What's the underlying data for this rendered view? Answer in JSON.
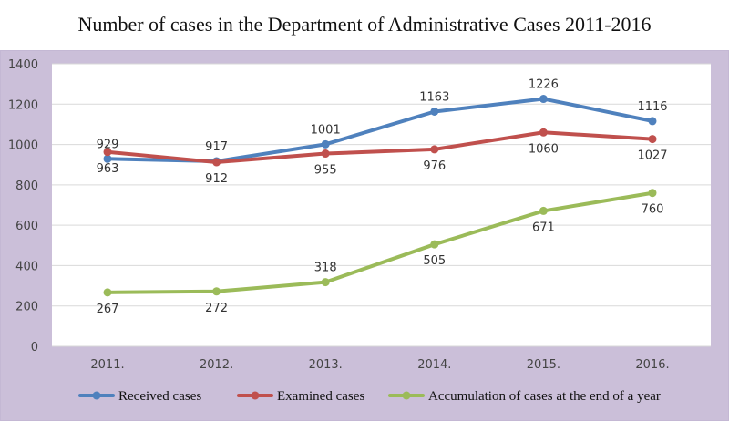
{
  "title": "Number of cases in the Department of Administrative Cases 2011-2016",
  "chart_data": {
    "type": "line",
    "title": "Number of cases in the Department of Administrative Cases 2011-2016",
    "categories": [
      "2011.",
      "2012.",
      "2013.",
      "2014.",
      "2015.",
      "2016."
    ],
    "ylim": [
      0,
      1400
    ],
    "yticks": [
      0,
      200,
      400,
      600,
      800,
      1000,
      1200,
      1400
    ],
    "grid": true,
    "legend_position": "bottom",
    "series": [
      {
        "name": "Received cases",
        "color": "#4f81bd",
        "values": [
          929,
          917,
          1001,
          1163,
          1226,
          1116
        ],
        "label_pos": [
          "above",
          "above",
          "above",
          "above",
          "above",
          "above"
        ]
      },
      {
        "name": "Examined cases",
        "color": "#c0504d",
        "values": [
          963,
          912,
          955,
          976,
          1060,
          1027
        ],
        "label_pos": [
          "below",
          "below",
          "below",
          "below",
          "below",
          "below"
        ]
      },
      {
        "name": "Accumulation of cases at the end of a year",
        "color": "#9bbb59",
        "values": [
          267,
          272,
          318,
          505,
          671,
          760
        ],
        "label_pos": [
          "below",
          "below",
          "above",
          "below",
          "below",
          "below"
        ]
      }
    ]
  }
}
